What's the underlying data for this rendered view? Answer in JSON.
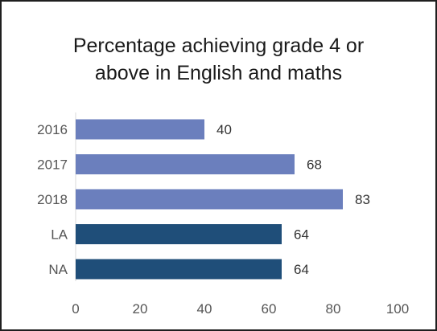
{
  "chart_data": {
    "type": "bar",
    "orientation": "horizontal",
    "title": "Percentage achieving grade 4 or\nabove in English and maths",
    "xlabel": "",
    "ylabel": "",
    "categories": [
      "2016",
      "2017",
      "2018",
      "LA",
      "NA"
    ],
    "values": [
      40,
      68,
      83,
      64,
      64
    ],
    "data_labels": [
      "40",
      "68",
      "83",
      "64",
      "64"
    ],
    "bar_colors": [
      "#6b7fbd",
      "#6b7fbd",
      "#6b7fbd",
      "#1f4e79",
      "#1f4e79"
    ],
    "xlim": [
      0,
      100
    ],
    "xticks": [
      "0",
      "20",
      "40",
      "60",
      "80",
      "100"
    ],
    "grid": false,
    "legend": "none"
  }
}
